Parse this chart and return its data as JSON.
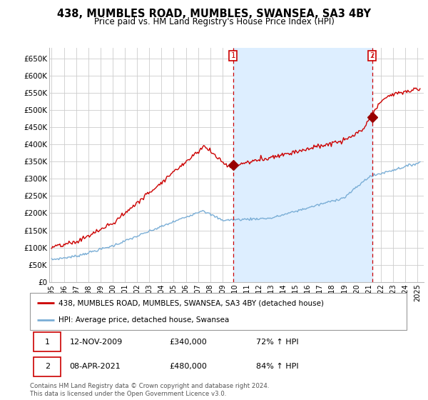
{
  "title": "438, MUMBLES ROAD, MUMBLES, SWANSEA, SA3 4BY",
  "subtitle": "Price paid vs. HM Land Registry's House Price Index (HPI)",
  "ylabel_ticks": [
    "£0",
    "£50K",
    "£100K",
    "£150K",
    "£200K",
    "£250K",
    "£300K",
    "£350K",
    "£400K",
    "£450K",
    "£500K",
    "£550K",
    "£600K",
    "£650K"
  ],
  "ytick_values": [
    0,
    50000,
    100000,
    150000,
    200000,
    250000,
    300000,
    350000,
    400000,
    450000,
    500000,
    550000,
    600000,
    650000
  ],
  "ylim": [
    0,
    680000
  ],
  "xlim_start": 1994.8,
  "xlim_end": 2025.5,
  "red_line_color": "#cc0000",
  "blue_line_color": "#7aaed6",
  "shade_color": "#ddeeff",
  "grid_color": "#cccccc",
  "background_color": "#ffffff",
  "transaction1_x": 2009.87,
  "transaction1_y": 340000,
  "transaction1_label": "1",
  "transaction2_x": 2021.27,
  "transaction2_y": 480000,
  "transaction2_label": "2",
  "vline_color": "#cc0000",
  "marker_color": "#990000",
  "legend_entry1": "438, MUMBLES ROAD, MUMBLES, SWANSEA, SA3 4BY (detached house)",
  "legend_entry2": "HPI: Average price, detached house, Swansea",
  "table_row1": [
    "1",
    "12-NOV-2009",
    "£340,000",
    "72% ↑ HPI"
  ],
  "table_row2": [
    "2",
    "08-APR-2021",
    "£480,000",
    "84% ↑ HPI"
  ],
  "footnote": "Contains HM Land Registry data © Crown copyright and database right 2024.\nThis data is licensed under the Open Government Licence v3.0."
}
